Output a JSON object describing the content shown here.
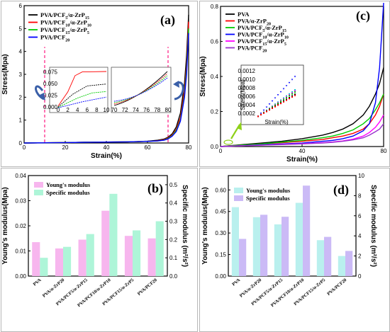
{
  "chart_data": [
    {
      "id": "a",
      "type": "line",
      "panel_label": "(a)",
      "xlabel": "Strain(%)",
      "ylabel": "Stress(Mpa)",
      "xlim": [
        0,
        80
      ],
      "ylim": [
        0,
        6
      ],
      "xticks": [
        0,
        20,
        40,
        60,
        80
      ],
      "yticks": [
        0,
        1,
        2,
        3,
        4,
        5,
        6
      ],
      "legend_position": "top-left",
      "markers_x": [
        10,
        70
      ],
      "series": [
        {
          "name": "PVA/PCF5/α-ZrP15",
          "color": "#000000",
          "x": [
            0,
            10,
            20,
            30,
            40,
            50,
            55,
            60,
            65,
            68,
            70,
            72,
            74,
            76,
            78,
            79,
            80
          ],
          "y": [
            0,
            0.01,
            0.02,
            0.03,
            0.04,
            0.05,
            0.06,
            0.08,
            0.12,
            0.17,
            0.25,
            0.4,
            0.7,
            1.3,
            2.6,
            3.8,
            5.6
          ]
        },
        {
          "name": "PVA/PCF10/α-ZrP10",
          "color": "#ff0000",
          "x": [
            0,
            10,
            20,
            30,
            40,
            50,
            55,
            60,
            65,
            68,
            70,
            72,
            74,
            76,
            78,
            79,
            80
          ],
          "y": [
            0,
            0.01,
            0.02,
            0.03,
            0.04,
            0.05,
            0.06,
            0.07,
            0.1,
            0.15,
            0.22,
            0.35,
            0.6,
            1.1,
            2.3,
            3.4,
            5.3
          ]
        },
        {
          "name": "PVA/PCF15/α-ZrP5",
          "color": "#00cc00",
          "x": [
            0,
            10,
            20,
            30,
            40,
            50,
            55,
            60,
            65,
            68,
            70,
            72,
            74,
            76,
            78,
            79,
            80
          ],
          "y": [
            0,
            0.01,
            0.02,
            0.03,
            0.04,
            0.05,
            0.06,
            0.07,
            0.09,
            0.13,
            0.2,
            0.32,
            0.55,
            1.0,
            2.1,
            3.2,
            5.0
          ]
        },
        {
          "name": "PVA/PCF20",
          "color": "#0000ff",
          "x": [
            0,
            10,
            20,
            30,
            40,
            50,
            55,
            60,
            65,
            68,
            70,
            72,
            74,
            76,
            78,
            79,
            80
          ],
          "y": [
            0,
            0.01,
            0.02,
            0.03,
            0.04,
            0.05,
            0.06,
            0.07,
            0.09,
            0.12,
            0.18,
            0.3,
            0.5,
            0.95,
            2.0,
            3.0,
            4.8
          ]
        }
      ],
      "inset1": {
        "xticks": [
          0,
          2,
          4,
          6,
          8,
          10
        ],
        "yticks": [
          0,
          0.025,
          0.05,
          0.075
        ],
        "ytick_labels": [
          "0.000",
          "0.025",
          "0.050",
          "0.075"
        ],
        "xlim": [
          0,
          10
        ],
        "ylim": [
          0,
          0.085
        ]
      },
      "inset2": {
        "xticks": [
          70,
          72,
          74,
          76,
          78,
          80
        ],
        "xlim": [
          70,
          80
        ]
      }
    },
    {
      "id": "c",
      "type": "line",
      "panel_label": "(c)",
      "xlabel": "Strain(%)",
      "ylabel": "Stress(Mpa)",
      "xlim": [
        0,
        80
      ],
      "ylim": [
        0,
        0.8
      ],
      "xticks": [
        0,
        40,
        80
      ],
      "yticks": [
        0.0,
        0.2,
        0.4,
        0.6,
        0.8
      ],
      "ytick_labels": [
        "0.0",
        "0.2",
        "0.4",
        "0.6",
        "0.8"
      ],
      "legend_position": "top-left",
      "series": [
        {
          "name": "PVA",
          "color": "#000000",
          "x": [
            0,
            10,
            20,
            30,
            40,
            50,
            55,
            60,
            65,
            70,
            73,
            76,
            78,
            80
          ],
          "y": [
            0,
            0.01,
            0.02,
            0.03,
            0.045,
            0.065,
            0.08,
            0.1,
            0.13,
            0.18,
            0.23,
            0.3,
            0.36,
            0.45
          ]
        },
        {
          "name": "PVA/α-ZrP20",
          "color": "#ff0000",
          "x": [
            0,
            10,
            20,
            30,
            40,
            50,
            55,
            60,
            65,
            70,
            73,
            76,
            78,
            80
          ],
          "y": [
            0,
            0.008,
            0.015,
            0.022,
            0.03,
            0.04,
            0.05,
            0.06,
            0.075,
            0.1,
            0.13,
            0.18,
            0.23,
            0.3
          ]
        },
        {
          "name": "PVA/PCF5/α-ZrP15",
          "color": "#00cc00",
          "x": [
            0,
            10,
            20,
            30,
            40,
            50,
            55,
            60,
            65,
            70,
            73,
            76,
            78,
            80
          ],
          "y": [
            0,
            0.008,
            0.015,
            0.025,
            0.035,
            0.05,
            0.06,
            0.075,
            0.095,
            0.13,
            0.16,
            0.21,
            0.25,
            0.3
          ]
        },
        {
          "name": "PVA/PCF10/α-ZrP10",
          "color": "#0000ff",
          "x": [
            0,
            10,
            20,
            30,
            40,
            50,
            55,
            60,
            65,
            70,
            73,
            76,
            78,
            80
          ],
          "y": [
            0,
            0.005,
            0.01,
            0.015,
            0.02,
            0.03,
            0.035,
            0.045,
            0.06,
            0.09,
            0.13,
            0.25,
            0.45,
            0.82
          ]
        },
        {
          "name": "PVA/PCF15/α-ZrP5",
          "color": "#ff00ff",
          "x": [
            0,
            10,
            20,
            30,
            40,
            50,
            55,
            60,
            65,
            70,
            73,
            76,
            78,
            80
          ],
          "y": [
            0,
            0.004,
            0.008,
            0.012,
            0.016,
            0.022,
            0.026,
            0.032,
            0.042,
            0.06,
            0.08,
            0.11,
            0.14,
            0.18
          ]
        },
        {
          "name": "PVA/PCF20",
          "color": "#9933cc",
          "x": [
            0,
            10,
            20,
            30,
            40,
            50,
            55,
            60,
            65,
            70,
            73,
            76,
            78,
            80
          ],
          "y": [
            0,
            0.004,
            0.008,
            0.011,
            0.015,
            0.02,
            0.024,
            0.03,
            0.038,
            0.05,
            0.065,
            0.085,
            0.1,
            0.13
          ]
        }
      ],
      "inset": {
        "ylabel": "Stress(Mpa)",
        "xlabel": "Strain(%)",
        "yticks": [
          0.0002,
          0.0004,
          0.0006,
          0.0008,
          0.001,
          0.0012
        ],
        "ytick_labels": [
          "0.0002",
          "0.0004",
          "0.0006",
          "0.0008",
          "0.0010",
          "0.0012"
        ],
        "ylim": [
          0.0001,
          0.0013
        ],
        "xlim": [
          0,
          6
        ]
      }
    },
    {
      "id": "b",
      "type": "bar",
      "panel_label": "(b)",
      "ylabel": "Young's modulus(Mpa)",
      "y2label": "Specific modulus (m²/s²)",
      "ylim": [
        0,
        0.04
      ],
      "yticks": [
        0.0,
        0.01,
        0.02,
        0.03,
        0.04
      ],
      "ytick_labels": [
        "0.00",
        "0.01",
        "0.02",
        "0.03",
        "0.04"
      ],
      "y2lim": [
        0,
        0.55
      ],
      "y2ticks": [
        0,
        0.1,
        0.2,
        0.3,
        0.4,
        0.5
      ],
      "y2tick_labels": [
        "0.0",
        "0.1",
        "0.2",
        "0.3",
        "0.4",
        "0.5"
      ],
      "legend_position": "top-left",
      "categories": [
        "PVA",
        "PVA/α-ZrP20",
        "PVA/PCF5/α-ZrP15",
        "PVA/PCF10/α-ZrP10",
        "PVA/PCF15/α-ZrP5",
        "PVA/PCF20"
      ],
      "series": [
        {
          "name": "Young's modulus",
          "color": "#f7b6ee",
          "axis": "left",
          "values": [
            0.0135,
            0.011,
            0.0145,
            0.026,
            0.016,
            0.015
          ]
        },
        {
          "name": "Specific modulus",
          "color": "#aef5d8",
          "axis": "right",
          "values": [
            0.1,
            0.16,
            0.23,
            0.45,
            0.25,
            0.3
          ]
        }
      ]
    },
    {
      "id": "d",
      "type": "bar",
      "panel_label": "(d)",
      "ylabel": "Young's modulus(Mpa)",
      "y2label": "Specific modulus (m²/s²)",
      "ylim": [
        0,
        0.7
      ],
      "yticks": [
        0.0,
        0.15,
        0.3,
        0.45,
        0.6
      ],
      "ytick_labels": [
        "0.00",
        "0.15",
        "0.30",
        "0.45",
        "0.60"
      ],
      "y2lim": [
        0,
        10
      ],
      "y2ticks": [
        0,
        2,
        4,
        6,
        8,
        10
      ],
      "y2tick_labels": [
        "0",
        "2",
        "4",
        "6",
        "8",
        "10"
      ],
      "legend_position": "top-left",
      "categories": [
        "PVA",
        "PVA/α-ZrP20",
        "PVA/PCF5/α-ZrP15",
        "PVA/PCF10/α-ZrP10",
        "PVA/PCF15/α-ZrP5",
        "PVA/PCF20"
      ],
      "series": [
        {
          "name": "Young's modulus",
          "color": "#b9f0ee",
          "axis": "left",
          "values": [
            0.48,
            0.41,
            0.36,
            0.51,
            0.25,
            0.14
          ]
        },
        {
          "name": "Specific modulus",
          "color": "#cbbaf6",
          "axis": "right",
          "values": [
            3.7,
            6.1,
            5.9,
            9.0,
            3.9,
            2.5
          ]
        }
      ]
    }
  ]
}
